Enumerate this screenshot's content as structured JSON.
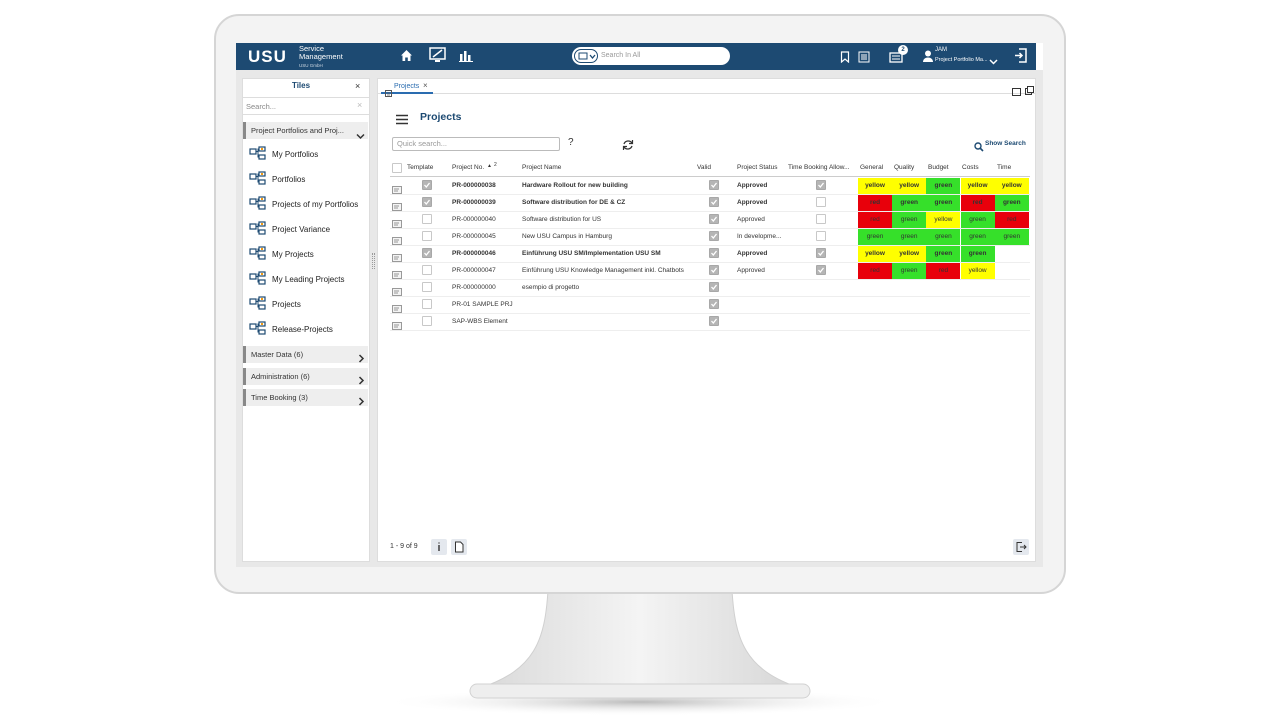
{
  "header": {
    "logo": "USU",
    "product": "Service Management",
    "company": "USU GmbH",
    "search_placeholder": "Search In All",
    "notifications": "2",
    "user": "JAM",
    "role": "Project Portfolio Ma..."
  },
  "sidebar": {
    "title": "Tiles",
    "search_placeholder": "Search...",
    "group": "Project Portfolios and Proj...",
    "items": [
      "My Portfolios",
      "Portfolios",
      "Projects of my Portfolios",
      "Project Variance",
      "My Projects",
      "My Leading Projects",
      "Projects",
      "Release-Projects"
    ],
    "sections": [
      "Master Data (6)",
      "Administration (6)",
      "Time Booking (3)"
    ]
  },
  "main": {
    "tab": "Projects",
    "title": "Projects",
    "quick_search_placeholder": "Quick search...",
    "help": "?",
    "show_search": "Show Search",
    "pagination": "1 - 9 of 9",
    "status_colors": {
      "yellow": "#ffff00",
      "green": "#36e02a",
      "red": "#e8000b"
    },
    "table": {
      "columns": [
        "Template",
        "Project No.",
        "Project Name",
        "Valid",
        "Project Status",
        "Time Booking Allow...",
        "General",
        "Quality",
        "Budget",
        "Costs",
        "Time"
      ],
      "sort_rank": "2",
      "rows": [
        {
          "template": true,
          "project_no": "PR-000000038",
          "project_name": "Hardware Rollout for new building",
          "valid": true,
          "status": "Approved",
          "time_booking": true,
          "bold": true,
          "traffic": [
            "yellow",
            "yellow",
            "green",
            "yellow",
            "yellow"
          ]
        },
        {
          "template": true,
          "project_no": "PR-000000039",
          "project_name": "Software distribution for DE & CZ",
          "valid": true,
          "status": "Approved",
          "time_booking": false,
          "bold": true,
          "traffic": [
            "red",
            "green",
            "green",
            "red",
            "green"
          ]
        },
        {
          "template": false,
          "project_no": "PR-000000040",
          "project_name": "Software distribution for US",
          "valid": true,
          "status": "Approved",
          "time_booking": false,
          "bold": false,
          "traffic": [
            "red",
            "green",
            "yellow",
            "green",
            "red"
          ]
        },
        {
          "template": false,
          "project_no": "PR-000000045",
          "project_name": "New USU Campus in Hamburg",
          "valid": true,
          "status": "In developme...",
          "time_booking": false,
          "bold": false,
          "traffic": [
            "green",
            "green",
            "green",
            "green",
            "green"
          ]
        },
        {
          "template": true,
          "project_no": "PR-000000046",
          "project_name": "Einführung USU SM/Implementation USU SM",
          "valid": true,
          "status": "Approved",
          "time_booking": true,
          "bold": true,
          "traffic": [
            "yellow",
            "yellow",
            "green",
            "green"
          ]
        },
        {
          "template": false,
          "project_no": "PR-000000047",
          "project_name": "Einführung USU Knowledge Management inkl. Chatbots",
          "valid": true,
          "status": "Approved",
          "time_booking": true,
          "bold": false,
          "traffic": [
            "red",
            "green",
            "red",
            "yellow"
          ]
        },
        {
          "template": false,
          "project_no": "PR-000000000",
          "project_name": "esempio di progetto",
          "valid": true,
          "bold": false
        },
        {
          "template": false,
          "project_no": "PR-01 SAMPLE PRJ",
          "valid": true,
          "bold": false
        },
        {
          "template": false,
          "project_no": "SAP-WBS Element",
          "valid": true,
          "bold": false
        }
      ]
    }
  }
}
